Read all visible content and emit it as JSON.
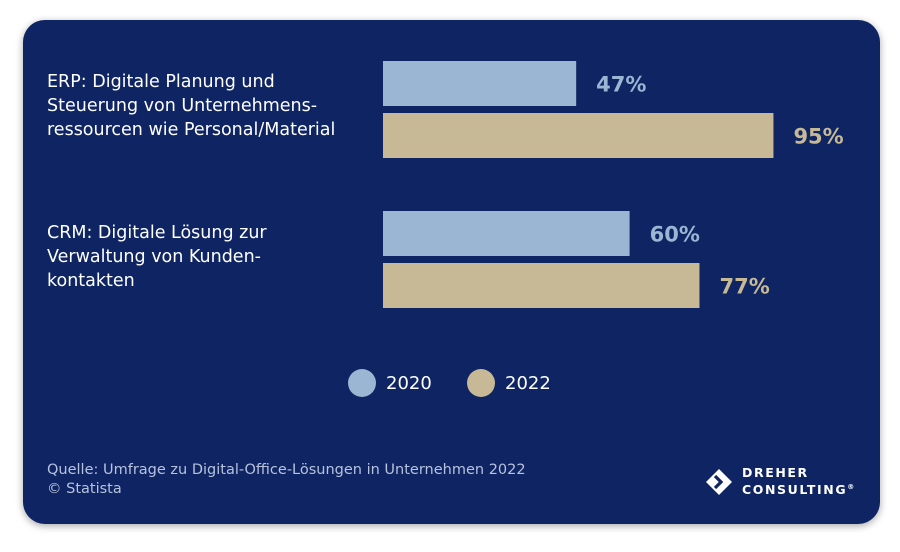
{
  "chart_data": {
    "type": "bar",
    "orientation": "horizontal",
    "categories": [
      [
        "ERP: Digitale Planung und",
        "Steuerung von Unternehmens-",
        "ressourcen wie Personal/Material"
      ],
      [
        "CRM: Digitale Lösung zur",
        "Verwaltung von Kunden-",
        "kontakten"
      ]
    ],
    "series": [
      {
        "name": "2020",
        "values": [
          47,
          60
        ],
        "labels": [
          "47%",
          "60%"
        ],
        "color": "#9bb6d3"
      },
      {
        "name": "2022",
        "values": [
          95,
          77
        ],
        "labels": [
          "95%",
          "77%"
        ],
        "color": "#c7b995"
      }
    ],
    "xlim": [
      0,
      100
    ],
    "grid": false,
    "legend_position": "bottom-center"
  },
  "footer": {
    "source_line1": "Quelle: Umfrage zu Digital-Office-Lösungen in Unternehmen 2022",
    "source_line2": "© Statista"
  },
  "logo": {
    "icon": "diamond-arrow-icon",
    "line1": "DREHER",
    "line2": "CONSULTING",
    "mark": "®"
  },
  "colors": {
    "background": "#0f2563",
    "bar_2020": "#9bb6d3",
    "bar_2022": "#c7b995"
  }
}
